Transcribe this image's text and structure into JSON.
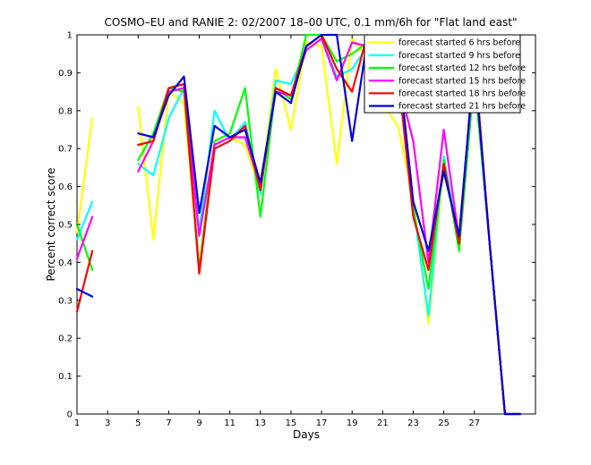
{
  "chart_data": {
    "type": "line",
    "title": "COSMO–EU and RANIE 2: 02/2007 18–00 UTC, 0.1 mm/6h for \"Flat land east\"",
    "xlabel": "Days",
    "ylabel": "Percent correct score",
    "xlim": [
      1,
      31
    ],
    "ylim": [
      0,
      1
    ],
    "xticks": [
      "1",
      "3",
      "5",
      "7",
      "9",
      "11",
      "13",
      "15",
      "17",
      "19",
      "21",
      "23",
      "25",
      "27"
    ],
    "yticks": [
      "0",
      "0.1",
      "0.2",
      "0.3",
      "0.4",
      "0.5",
      "0.6",
      "0.7",
      "0.8",
      "0.9",
      "1"
    ],
    "grid": false,
    "legend_position": "top-right",
    "series": [
      {
        "name": "forecast started 6 hrs before",
        "color": "#ffff00",
        "segments": [
          [
            [
              1,
              0.48
            ],
            [
              2,
              0.78
            ]
          ],
          [
            [
              5,
              0.81
            ],
            [
              6,
              0.46
            ],
            [
              7,
              0.85
            ],
            [
              8,
              0.82
            ],
            [
              9,
              0.39
            ],
            [
              10,
              0.71
            ],
            [
              11,
              0.73
            ],
            [
              12,
              0.71
            ],
            [
              13,
              0.59
            ],
            [
              14,
              0.91
            ],
            [
              15,
              0.75
            ],
            [
              16,
              0.98
            ],
            [
              17,
              0.97
            ],
            [
              18,
              0.66
            ],
            [
              19,
              0.99
            ],
            [
              20,
              0.94
            ],
            [
              21,
              0.82
            ],
            [
              22,
              0.76
            ],
            [
              23,
              0.57
            ],
            [
              24,
              0.24
            ],
            [
              25,
              0.66
            ],
            [
              26,
              0.46
            ],
            [
              27,
              0.92
            ],
            [
              28,
              0.45
            ],
            [
              29,
              0
            ],
            [
              30,
              0
            ]
          ]
        ]
      },
      {
        "name": "forecast started 9 hrs before",
        "color": "#00ffff",
        "segments": [
          [
            [
              1,
              0.46
            ],
            [
              2,
              0.56
            ]
          ],
          [
            [
              5,
              0.66
            ],
            [
              6,
              0.63
            ],
            [
              7,
              0.78
            ],
            [
              8,
              0.86
            ],
            [
              9,
              0.48
            ],
            [
              10,
              0.8
            ],
            [
              11,
              0.72
            ],
            [
              12,
              0.77
            ],
            [
              13,
              0.58
            ],
            [
              14,
              0.88
            ],
            [
              15,
              0.87
            ],
            [
              16,
              0.96
            ],
            [
              17,
              0.99
            ],
            [
              18,
              0.89
            ],
            [
              19,
              0.91
            ],
            [
              20,
              0.97
            ],
            [
              21,
              0.86
            ],
            [
              22,
              0.92
            ],
            [
              23,
              0.55
            ],
            [
              24,
              0.26
            ],
            [
              25,
              0.68
            ],
            [
              26,
              0.45
            ],
            [
              27,
              0.9
            ],
            [
              28,
              0.45
            ],
            [
              29,
              0
            ],
            [
              30,
              0
            ]
          ]
        ]
      },
      {
        "name": "forecast started 12 hrs before",
        "color": "#00ff00",
        "segments": [
          [
            [
              1,
              0.5
            ],
            [
              2,
              0.38
            ]
          ],
          [
            [
              5,
              0.67
            ],
            [
              6,
              0.74
            ],
            [
              7,
              0.86
            ],
            [
              8,
              0.85
            ],
            [
              9,
              0.38
            ],
            [
              10,
              0.72
            ],
            [
              11,
              0.74
            ],
            [
              12,
              0.86
            ],
            [
              13,
              0.52
            ],
            [
              14,
              0.86
            ],
            [
              15,
              0.83
            ],
            [
              16,
              1.0
            ],
            [
              17,
              1.0
            ],
            [
              18,
              0.93
            ],
            [
              19,
              0.95
            ],
            [
              20,
              0.98
            ],
            [
              21,
              0.94
            ],
            [
              22,
              0.95
            ],
            [
              23,
              0.54
            ],
            [
              24,
              0.33
            ],
            [
              25,
              0.67
            ],
            [
              26,
              0.43
            ],
            [
              27,
              0.89
            ],
            [
              28,
              0.45
            ],
            [
              29,
              0
            ],
            [
              30,
              0
            ]
          ]
        ]
      },
      {
        "name": "forecast started 15 hrs before",
        "color": "#ff00ff",
        "segments": [
          [
            [
              1,
              0.41
            ],
            [
              2,
              0.52
            ]
          ],
          [
            [
              5,
              0.64
            ],
            [
              6,
              0.72
            ],
            [
              7,
              0.85
            ],
            [
              8,
              0.86
            ],
            [
              9,
              0.47
            ],
            [
              10,
              0.71
            ],
            [
              11,
              0.73
            ],
            [
              12,
              0.73
            ],
            [
              13,
              0.6
            ],
            [
              14,
              0.85
            ],
            [
              15,
              0.84
            ],
            [
              16,
              0.96
            ],
            [
              17,
              0.99
            ],
            [
              18,
              0.88
            ],
            [
              19,
              0.98
            ],
            [
              20,
              0.97
            ],
            [
              21,
              0.86
            ],
            [
              22,
              0.88
            ],
            [
              23,
              0.72
            ],
            [
              24,
              0.4
            ],
            [
              25,
              0.75
            ],
            [
              26,
              0.46
            ],
            [
              27,
              0.93
            ],
            [
              28,
              0.45
            ],
            [
              29,
              0
            ],
            [
              30,
              0
            ]
          ]
        ]
      },
      {
        "name": "forecast started 18 hrs before",
        "color": "#ff0000",
        "segments": [
          [
            [
              1,
              0.27
            ],
            [
              2,
              0.43
            ]
          ],
          [
            [
              5,
              0.71
            ],
            [
              6,
              0.72
            ],
            [
              7,
              0.86
            ],
            [
              8,
              0.87
            ],
            [
              9,
              0.37
            ],
            [
              10,
              0.7
            ],
            [
              11,
              0.72
            ],
            [
              12,
              0.76
            ],
            [
              13,
              0.59
            ],
            [
              14,
              0.86
            ],
            [
              15,
              0.84
            ],
            [
              16,
              0.97
            ],
            [
              17,
              1.0
            ],
            [
              18,
              0.91
            ],
            [
              19,
              0.85
            ],
            [
              20,
              1.0
            ],
            [
              21,
              0.86
            ],
            [
              22,
              0.9
            ],
            [
              23,
              0.52
            ],
            [
              24,
              0.38
            ],
            [
              25,
              0.66
            ],
            [
              26,
              0.45
            ],
            [
              27,
              0.95
            ],
            [
              28,
              0.45
            ],
            [
              29,
              0
            ],
            [
              30,
              0
            ]
          ]
        ]
      },
      {
        "name": "forecast started 21 hrs before",
        "color": "#0000dd",
        "segments": [
          [
            [
              1,
              0.33
            ],
            [
              2,
              0.31
            ]
          ],
          [
            [
              5,
              0.74
            ],
            [
              6,
              0.73
            ],
            [
              7,
              0.84
            ],
            [
              8,
              0.89
            ],
            [
              9,
              0.53
            ],
            [
              10,
              0.76
            ],
            [
              11,
              0.73
            ],
            [
              12,
              0.75
            ],
            [
              13,
              0.61
            ],
            [
              14,
              0.85
            ],
            [
              15,
              0.82
            ],
            [
              16,
              0.97
            ],
            [
              17,
              1.0
            ],
            [
              18,
              1.0
            ],
            [
              19,
              0.72
            ],
            [
              20,
              0.99
            ],
            [
              21,
              0.82
            ],
            [
              22,
              0.94
            ],
            [
              23,
              0.56
            ],
            [
              24,
              0.43
            ],
            [
              25,
              0.64
            ],
            [
              26,
              0.47
            ],
            [
              27,
              0.93
            ],
            [
              28,
              0.45
            ],
            [
              29,
              0
            ],
            [
              30,
              0
            ]
          ]
        ]
      }
    ]
  }
}
